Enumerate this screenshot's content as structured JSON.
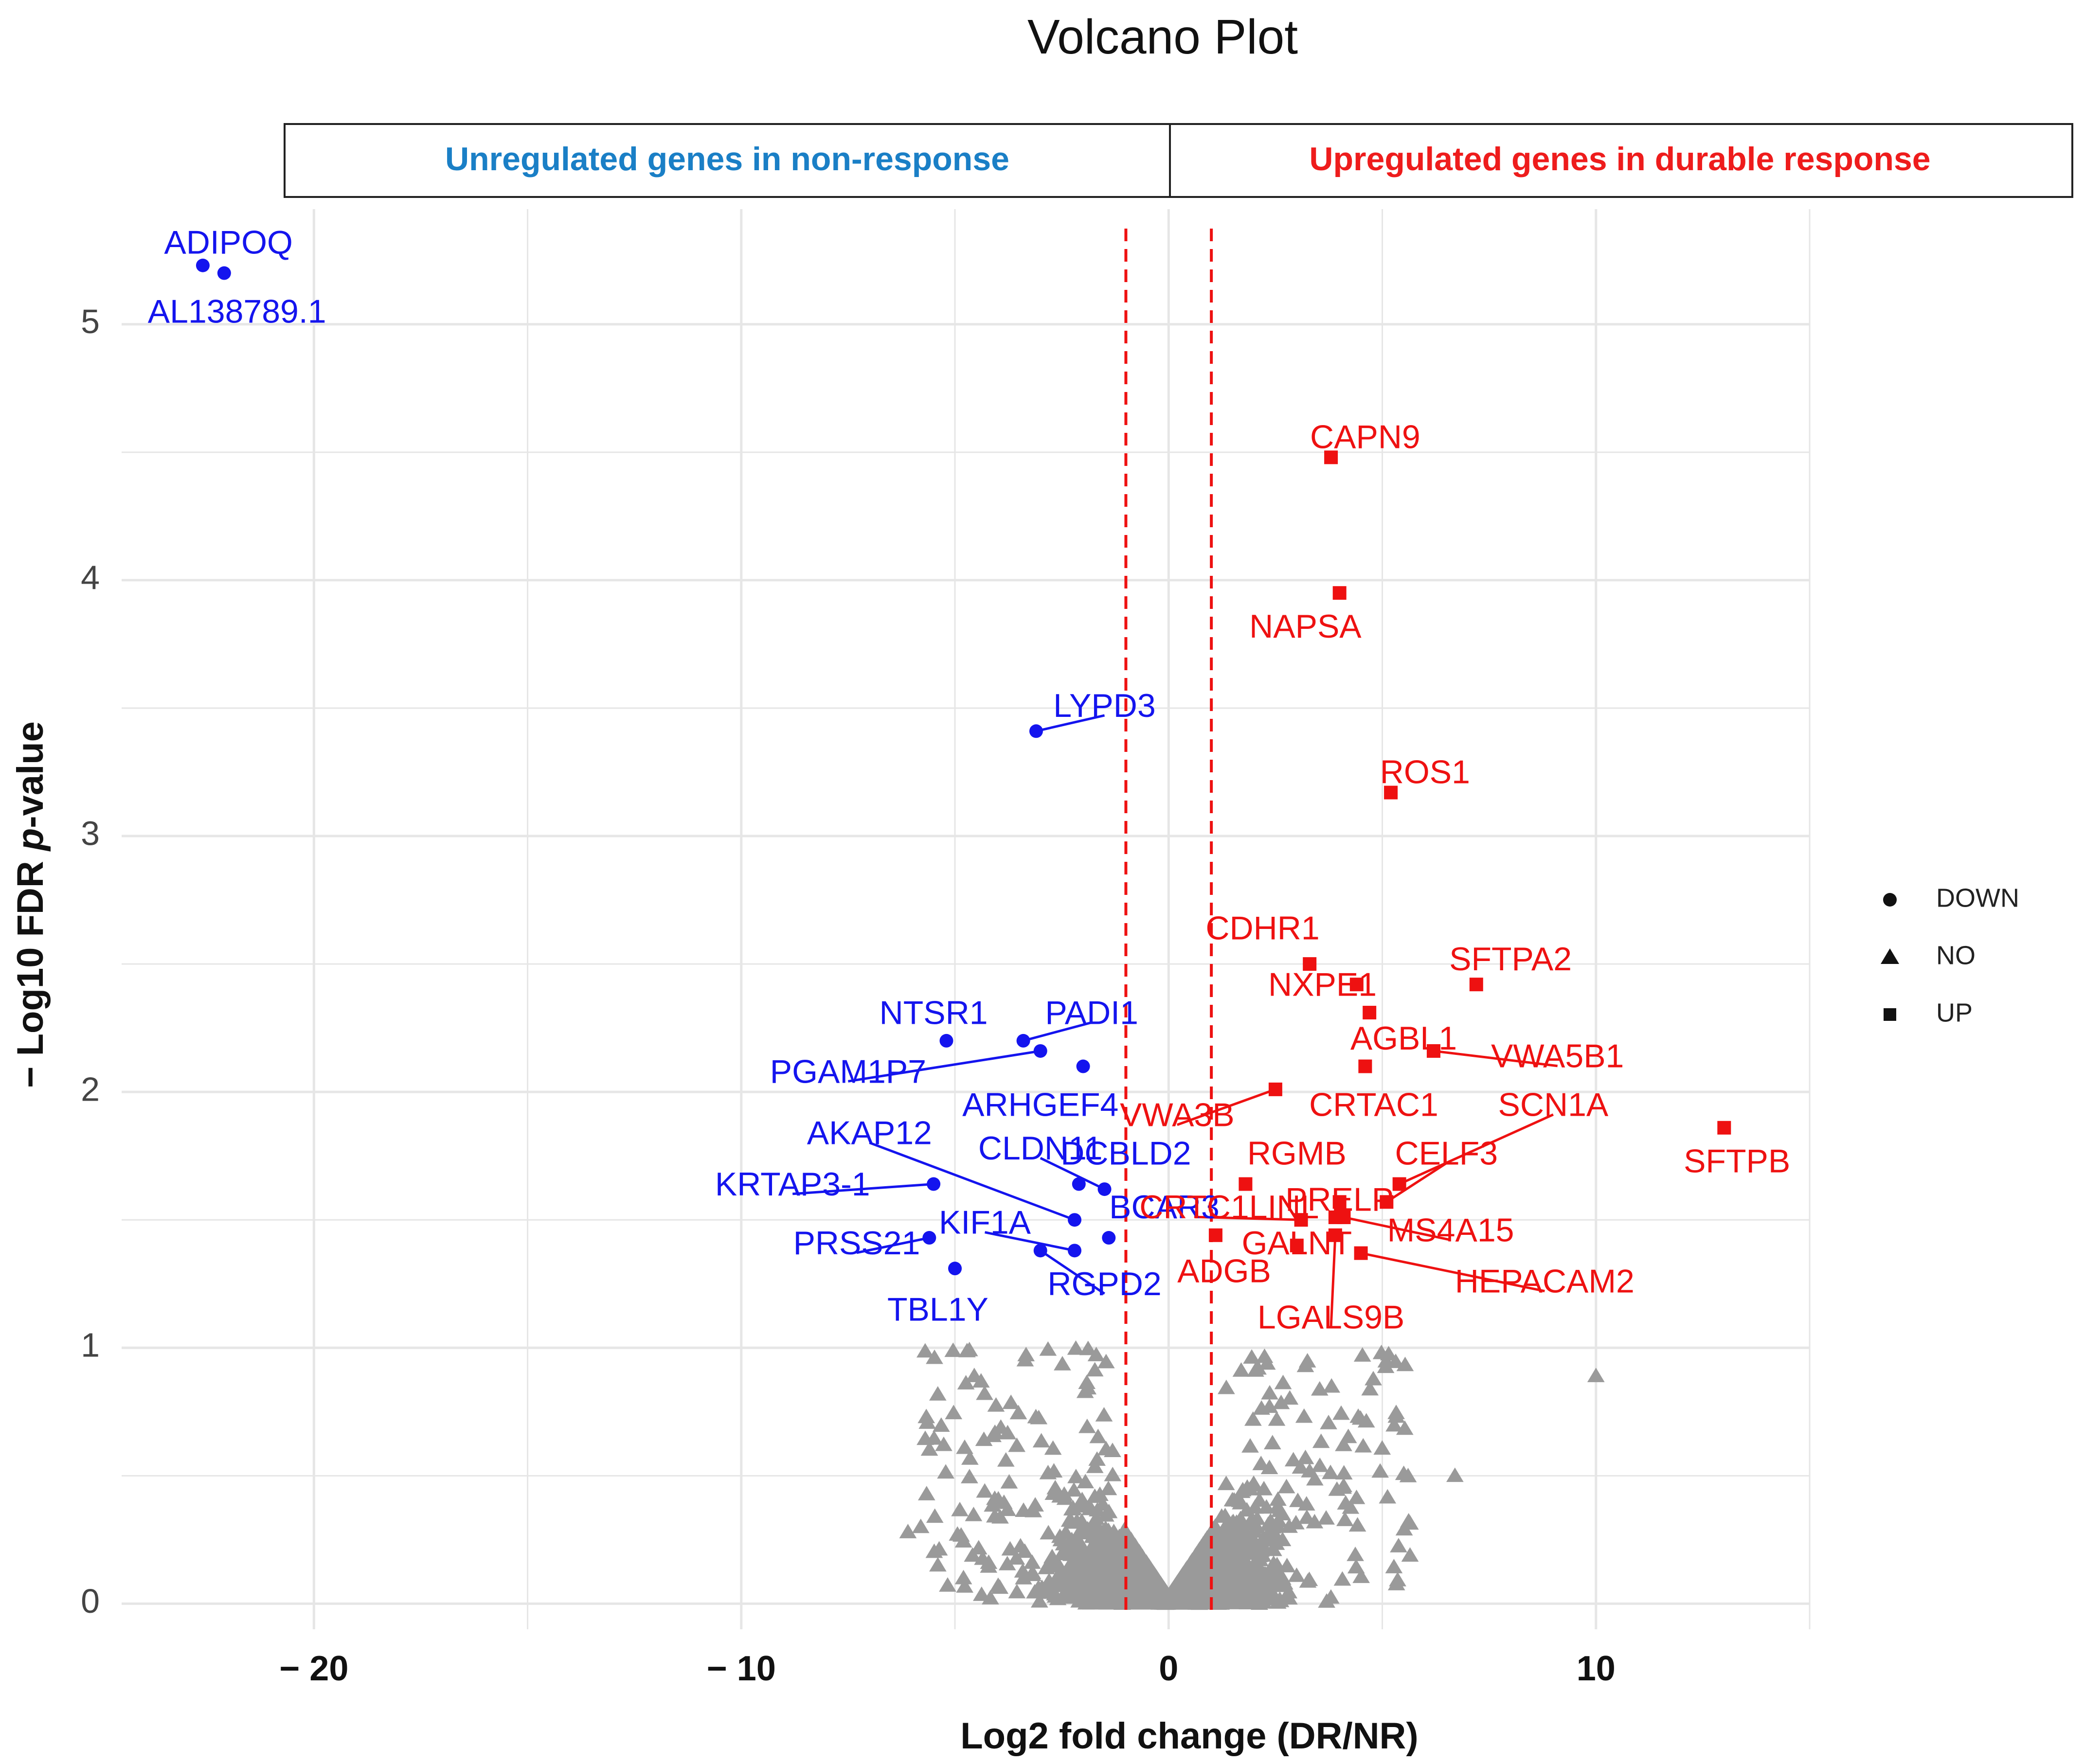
{
  "chart_data": {
    "type": "scatter",
    "title": "Volcano Plot",
    "xlabel": "Log2 fold change (DR/NR)",
    "ylabel_prefix": "− Log10 FDR ",
    "ylabel_italic": "p",
    "ylabel_suffix": "-value",
    "xlim": [
      -24.5,
      15
    ],
    "ylim": [
      -0.1,
      5.45
    ],
    "x_ticks": [
      {
        "value": -20,
        "label": "− 20"
      },
      {
        "value": -10,
        "label": "− 10"
      },
      {
        "value": 0,
        "label": "0"
      },
      {
        "value": 10,
        "label": "10"
      }
    ],
    "y_ticks": [
      {
        "value": 0,
        "label": "0"
      },
      {
        "value": 1,
        "label": "1"
      },
      {
        "value": 2,
        "label": "2"
      },
      {
        "value": 3,
        "label": "3"
      },
      {
        "value": 4,
        "label": "4"
      },
      {
        "value": 5,
        "label": "5"
      }
    ],
    "thresholds": [
      -1,
      1
    ],
    "banner": {
      "left": {
        "text": "Unregulated genes in non-response",
        "color": "#1a7fc6"
      },
      "right": {
        "text": "Upregulated genes in durable response",
        "color": "#ee1c1c"
      }
    },
    "colors": {
      "down": "#1414ee",
      "up": "#ee1111",
      "no": "#9a9a9a",
      "threshold": "#ee1111",
      "grid": "#e6e6e6"
    },
    "legend": {
      "position": "right",
      "entries": [
        {
          "shape": "circle",
          "label": "DOWN"
        },
        {
          "shape": "triangle",
          "label": "NO"
        },
        {
          "shape": "square",
          "label": "UP"
        }
      ]
    },
    "down_genes": [
      {
        "name": "ADIPOQ",
        "x": -22.6,
        "y": 5.23,
        "lx": -22.0,
        "ly": 5.31
      },
      {
        "name": "AL138789.1",
        "x": -22.1,
        "y": 5.2,
        "lx": -21.8,
        "ly": 5.04
      },
      {
        "name": "LYPD3",
        "x": -3.1,
        "y": 3.41,
        "lx": -1.5,
        "ly": 3.5
      },
      {
        "name": "NTSR1",
        "x": -5.2,
        "y": 2.2,
        "lx": -5.5,
        "ly": 2.3
      },
      {
        "name": "PADI1",
        "x": -3.4,
        "y": 2.2,
        "lx": -1.8,
        "ly": 2.3
      },
      {
        "name": "PGAM1P7",
        "x": -3.0,
        "y": 2.16,
        "lx": -7.5,
        "ly": 2.07
      },
      {
        "name": "ARHGEF4",
        "x": -2.0,
        "y": 2.1,
        "lx": -3.0,
        "ly": 1.94
      },
      {
        "name": "AKAP12",
        "x": -2.2,
        "y": 1.5,
        "lx": -7.0,
        "ly": 1.83
      },
      {
        "name": "CLDN11",
        "x": -1.5,
        "y": 1.62,
        "lx": -3.0,
        "ly": 1.77
      },
      {
        "name": "DCBLD2",
        "x": -2.1,
        "y": 1.64,
        "lx": -1.0,
        "ly": 1.75
      },
      {
        "name": "KRTAP3-1",
        "x": -5.5,
        "y": 1.64,
        "lx": -8.8,
        "ly": 1.63
      },
      {
        "name": "BCAR3",
        "x": -1.4,
        "y": 1.43,
        "lx": -0.1,
        "ly": 1.54
      },
      {
        "name": "KIF1A",
        "x": -2.2,
        "y": 1.38,
        "lx": -4.3,
        "ly": 1.48
      },
      {
        "name": "PRSS21",
        "x": -5.6,
        "y": 1.43,
        "lx": -7.3,
        "ly": 1.4
      },
      {
        "name": "RGPD2",
        "x": -3.0,
        "y": 1.38,
        "lx": -1.5,
        "ly": 1.24
      },
      {
        "name": "TBL1Y",
        "x": -5.0,
        "y": 1.31,
        "lx": -5.4,
        "ly": 1.14
      }
    ],
    "up_genes": [
      {
        "name": "CAPN9",
        "x": 3.8,
        "y": 4.48,
        "lx": 4.6,
        "ly": 4.55
      },
      {
        "name": "NAPSA",
        "x": 4.0,
        "y": 3.95,
        "lx": 3.2,
        "ly": 3.81
      },
      {
        "name": "ROS1",
        "x": 5.2,
        "y": 3.17,
        "lx": 6.0,
        "ly": 3.24
      },
      {
        "name": "CDHR1",
        "x": 3.3,
        "y": 2.5,
        "lx": 2.2,
        "ly": 2.63
      },
      {
        "name": "NXPE1",
        "x": 4.4,
        "y": 2.42,
        "lx": 3.6,
        "ly": 2.41
      },
      {
        "name": "SFTPA2",
        "x": 7.2,
        "y": 2.42,
        "lx": 8.0,
        "ly": 2.51
      },
      {
        "name": "AGBL1",
        "x": 4.7,
        "y": 2.31,
        "lx": 5.5,
        "ly": 2.2
      },
      {
        "name": "VWA5B1",
        "x": 6.2,
        "y": 2.16,
        "lx": 9.1,
        "ly": 2.13
      },
      {
        "name": "CRTAC1",
        "x": 4.6,
        "y": 2.1,
        "lx": 4.8,
        "ly": 1.94
      },
      {
        "name": "VWA3B",
        "x": 2.5,
        "y": 2.01,
        "lx": 0.2,
        "ly": 1.9
      },
      {
        "name": "SCN1A",
        "x": 5.4,
        "y": 1.64,
        "lx": 9.0,
        "ly": 1.94
      },
      {
        "name": "RGMB",
        "x": 1.8,
        "y": 1.64,
        "lx": 3.0,
        "ly": 1.75
      },
      {
        "name": "CELF3",
        "x": 5.1,
        "y": 1.57,
        "lx": 6.5,
        "ly": 1.75
      },
      {
        "name": "CRTC1",
        "x": 3.1,
        "y": 1.5,
        "lx": 0.6,
        "ly": 1.54
      },
      {
        "name": "LINL",
        "x": 3.9,
        "y": 1.51,
        "lx": 2.7,
        "ly": 1.54
      },
      {
        "name": "MS4A15",
        "x": 4.1,
        "y": 1.51,
        "lx": 6.6,
        "ly": 1.45
      },
      {
        "name": "PRELP",
        "x": 4.0,
        "y": 1.57,
        "lx": 4.0,
        "ly": 1.57
      },
      {
        "name": "ADGB",
        "x": 1.1,
        "y": 1.44,
        "lx": 1.3,
        "ly": 1.29
      },
      {
        "name": "LGALS9B",
        "x": 3.9,
        "y": 1.44,
        "lx": 3.8,
        "ly": 1.11
      },
      {
        "name": "HEPACAM2",
        "x": 4.5,
        "y": 1.37,
        "lx": 8.8,
        "ly": 1.25
      },
      {
        "name": "SFTPB",
        "x": 13.0,
        "y": 1.86,
        "lx": 13.3,
        "ly": 1.72
      },
      {
        "name": "GALNT",
        "x": 3.0,
        "y": 1.4,
        "lx": 3.0,
        "ly": 1.4
      }
    ]
  }
}
